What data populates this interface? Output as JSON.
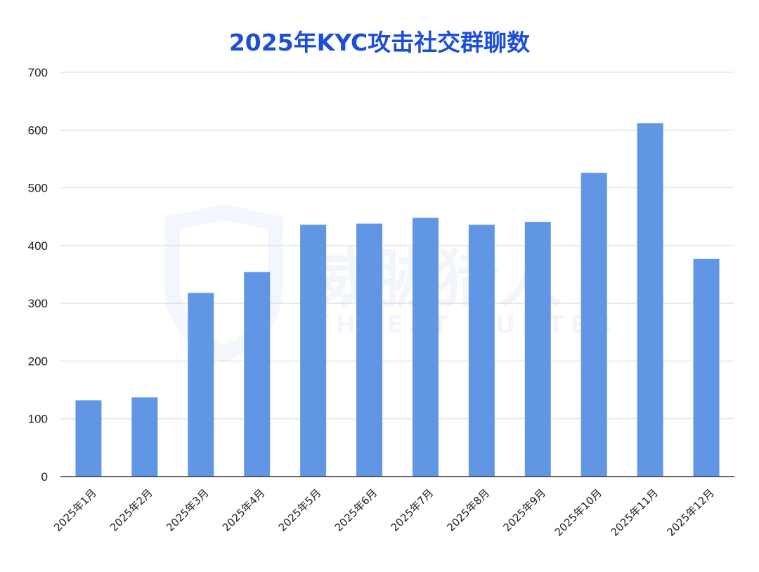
{
  "title": "2025年KYC攻击社交群聊数",
  "watermark": {
    "name_cn": "威胁猎人",
    "name_en": "THREAT HUNTER"
  },
  "colors": {
    "title": "#1b4fd8",
    "bar": "#6196e5",
    "grid": "#d9d9d9",
    "axis": "#333333"
  },
  "chart_data": {
    "type": "bar",
    "title": "2025年KYC攻击社交群聊数",
    "xlabel": "",
    "ylabel": "",
    "categories": [
      "2025年1月",
      "2025年2月",
      "2025年3月",
      "2025年4月",
      "2025年5月",
      "2025年6月",
      "2025年7月",
      "2025年8月",
      "2025年9月",
      "2025年10月",
      "2025年11月",
      "2025年12月"
    ],
    "values": [
      132,
      137,
      318,
      354,
      436,
      438,
      448,
      436,
      441,
      526,
      612,
      377
    ],
    "ylim": [
      0,
      700
    ],
    "yticks": [
      0,
      100,
      200,
      300,
      400,
      500,
      600,
      700
    ],
    "grid": true,
    "legend": "none"
  }
}
